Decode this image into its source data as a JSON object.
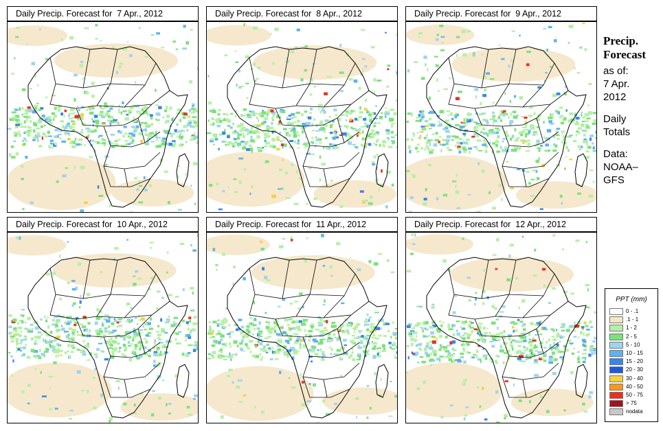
{
  "panels": [
    {
      "title_prefix": "Daily Precip. Forecast for",
      "date": "7 Apr., 2012"
    },
    {
      "title_prefix": "Daily Precip. Forecast for",
      "date": "8 Apr., 2012"
    },
    {
      "title_prefix": "Daily Precip. Forecast for",
      "date": "9 Apr., 2012"
    },
    {
      "title_prefix": "Daily Precip. Forecast for",
      "date": "10 Apr., 2012"
    },
    {
      "title_prefix": "Daily Precip. Forecast for",
      "date": "11 Apr., 2012"
    },
    {
      "title_prefix": "Daily Precip. Forecast for",
      "date": "12 Apr., 2012"
    }
  ],
  "sidebar": {
    "heading_line1": "Precip.",
    "heading_line2": "Forecast",
    "asof_label": "as of:",
    "asof_date_line1": "7 Apr.",
    "asof_date_line2": "2012",
    "totals_line1": "Daily",
    "totals_line2": "Totals",
    "data_line1": "Data:",
    "data_line2": "NOAA–",
    "data_line3": "GFS"
  },
  "legend": {
    "title": "PPT (mm)",
    "classes": [
      {
        "label": "0 - .1",
        "color": "#ffffff"
      },
      {
        "label": ".1 - 1",
        "color": "#f5e6c8"
      },
      {
        "label": "1 - 2",
        "color": "#b5f0a5"
      },
      {
        "label": "2 - 5",
        "color": "#7ce27c"
      },
      {
        "label": "5 - 10",
        "color": "#9fd4ef"
      },
      {
        "label": "10 - 15",
        "color": "#5fb3ea"
      },
      {
        "label": "15 - 20",
        "color": "#3a86e4"
      },
      {
        "label": "20 - 30",
        "color": "#1f5ad6"
      },
      {
        "label": "30 - 40",
        "color": "#f5d23a"
      },
      {
        "label": "40 - 50",
        "color": "#f59a1f"
      },
      {
        "label": "50 - 75",
        "color": "#e8321f"
      },
      {
        "label": "> 75",
        "color": "#a0141f"
      },
      {
        "label": "nodata",
        "color": "#c8c8c8"
      }
    ]
  }
}
